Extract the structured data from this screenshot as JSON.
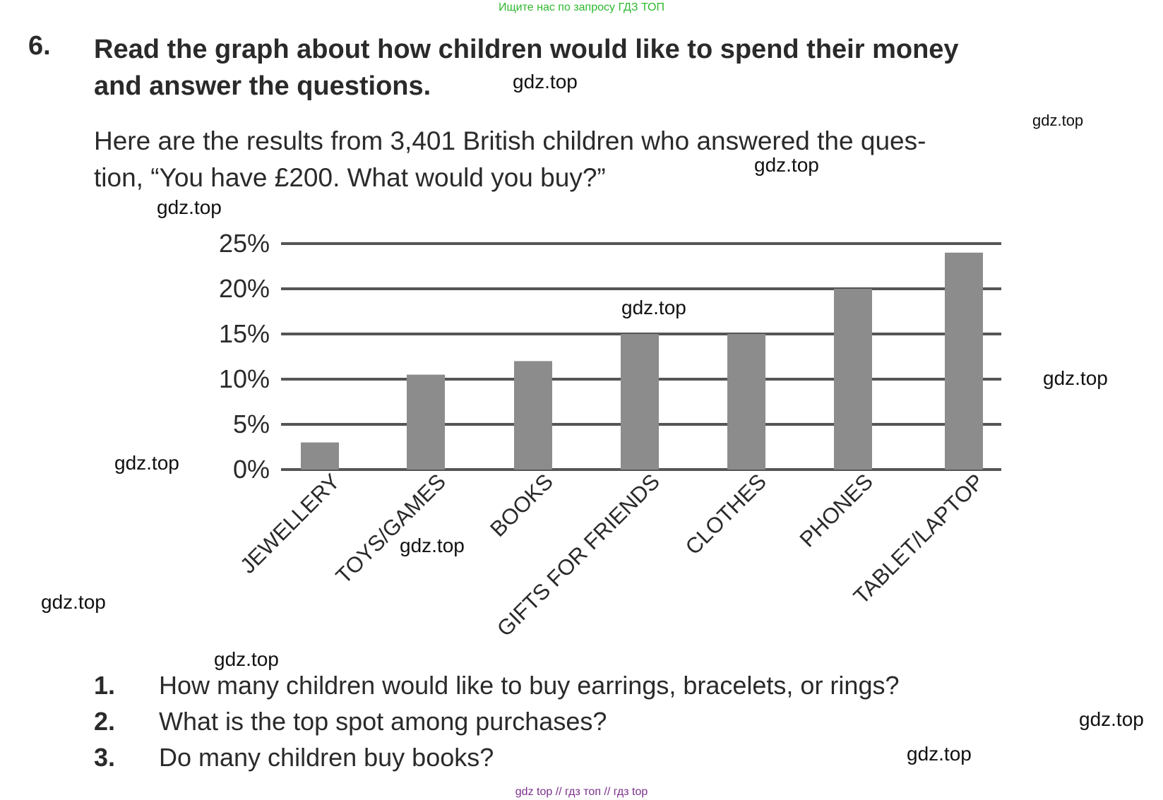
{
  "top_banner": "Ищите нас по запросу ГДЗ ТОП",
  "exercise": {
    "number": "6.",
    "title_line1": "Read the graph about how children would like to spend their money",
    "title_line2": "and answer the questions.",
    "intro_line1": "Here are the results from 3,401 British children who answered the ques-",
    "intro_line2": "tion, “You have £200. What would you buy?”"
  },
  "watermarks": [
    "gdz.top",
    "gdz.top",
    "gdz.top",
    "gdz.top",
    "gdz.top",
    "gdz.top",
    "gdz.top",
    "gdz.top",
    "gdz.top",
    "gdz.top",
    "gdz.top"
  ],
  "chart_data": {
    "type": "bar",
    "title": "",
    "xlabel": "",
    "ylabel": "",
    "categories": [
      "JEWELLERY",
      "TOYS/GAMES",
      "BOOKS",
      "GIFTS FOR FRIENDS",
      "CLOTHES",
      "PHONES",
      "TABLET/LAPTOP"
    ],
    "values": [
      3,
      10.5,
      12,
      15,
      15,
      20,
      24
    ],
    "yticks": [
      "0%",
      "5%",
      "10%",
      "15%",
      "20%",
      "25%"
    ],
    "ylim": [
      0,
      25
    ],
    "grid": true,
    "bar_color": "#8c8c8c",
    "grid_color": "#555555"
  },
  "questions": [
    {
      "num": "1.",
      "text": "How many children would like to buy earrings, bracelets, or rings?"
    },
    {
      "num": "2.",
      "text": "What is the top spot among purchases?"
    },
    {
      "num": "3.",
      "text": "Do many children buy books?"
    }
  ],
  "bottom_banner": "gdz top  //  гдз топ  //  гдз top"
}
